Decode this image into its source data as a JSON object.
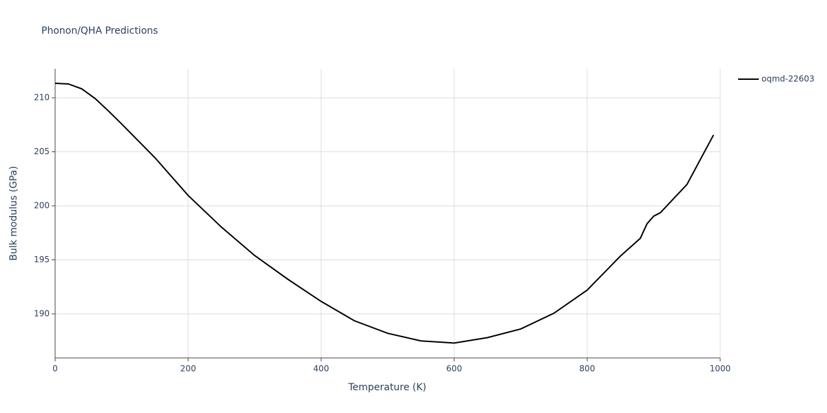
{
  "chart_data": {
    "type": "line",
    "title": "Phonon/QHA Predictions",
    "x_label": "Temperature (K)",
    "y_label": "Bulk modulus (GPa)",
    "x": [
      0,
      20,
      40,
      60,
      80,
      100,
      150,
      200,
      250,
      300,
      350,
      400,
      450,
      500,
      550,
      600,
      650,
      700,
      750,
      800,
      850,
      880,
      890,
      900,
      910,
      950,
      990
    ],
    "series": [
      {
        "name": "oqmd-22603",
        "color": "#000000",
        "values": [
          211.34,
          211.28,
          210.83,
          209.94,
          208.79,
          207.58,
          204.46,
          200.96,
          198.03,
          195.4,
          193.2,
          191.15,
          189.36,
          188.2,
          187.5,
          187.3,
          187.8,
          188.6,
          190.06,
          192.2,
          195.35,
          197.0,
          198.34,
          199.04,
          199.36,
          201.97,
          206.56
        ]
      }
    ],
    "xlim": [
      0,
      1000
    ],
    "xticks": [
      0,
      200,
      400,
      600,
      800,
      1000
    ],
    "ylim": [
      185.92,
      212.68
    ],
    "yticks": [
      190,
      195,
      200,
      205,
      210
    ],
    "grid": true,
    "legend": "right"
  }
}
